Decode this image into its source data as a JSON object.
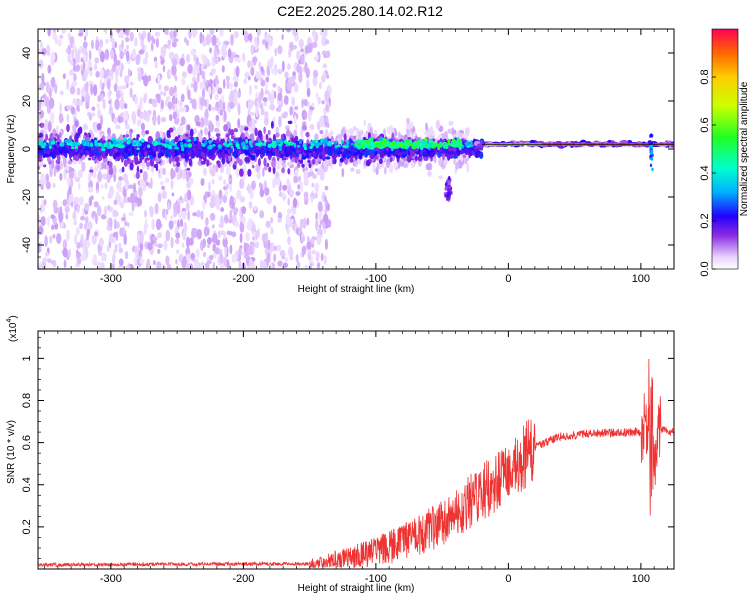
{
  "title": "C2E2.2025.280.14.02.R12",
  "chart_data": [
    {
      "type": "heatmap",
      "name": "spectrogram",
      "xlabel": "Height of straight line (km)",
      "ylabel": "Frequency (Hz)",
      "xlim": [
        -355,
        125
      ],
      "ylim": [
        -50,
        50
      ],
      "xticks": [
        -300,
        -200,
        -100,
        0,
        100
      ],
      "xtick_labels": [
        "-300",
        "-200",
        "-100",
        "0",
        "100"
      ],
      "yticks": [
        -40,
        -20,
        0,
        20,
        40
      ],
      "ytick_labels": [
        "-40",
        "-20",
        "0",
        "20",
        "40"
      ],
      "colorbar": {
        "label": "Normalized spectral amplitude",
        "range": [
          0,
          1
        ],
        "ticks": [
          0.0,
          0.2,
          0.4,
          0.6,
          0.8
        ],
        "tick_labels": [
          "0.0",
          "0.2",
          "0.4",
          "0.6",
          "0.8"
        ]
      },
      "center_line_hz": 2,
      "description_points": {
        "noise_region_km": [
          -355,
          -140
        ],
        "dense_band_km": [
          -355,
          -20
        ],
        "tone_region_km": [
          -20,
          125
        ],
        "spike_km": 108
      }
    },
    {
      "type": "line",
      "name": "snr",
      "xlabel": "Height of straight line (km)",
      "ylabel": "SNR (10 * v/v)",
      "scale_label": "(x10",
      "scale_exponent": "4",
      "scale_close": ")",
      "xlim": [
        -355,
        125
      ],
      "ylim": [
        0,
        1.13
      ],
      "xticks": [
        -300,
        -200,
        -100,
        0,
        100
      ],
      "xtick_labels": [
        "-300",
        "-200",
        "-100",
        "0",
        "100"
      ],
      "yticks": [
        0.2,
        0.4,
        0.6,
        0.8,
        1
      ],
      "ytick_labels": [
        "0.2",
        "0.4",
        "0.6",
        "0.8",
        "1"
      ],
      "color": "#ee3333",
      "trend": {
        "x": [
          -355,
          -150,
          -120,
          -80,
          -50,
          -20,
          0,
          20,
          40,
          60,
          100,
          105,
          110,
          115,
          125
        ],
        "y": [
          0.02,
          0.025,
          0.05,
          0.12,
          0.22,
          0.36,
          0.46,
          0.58,
          0.63,
          0.645,
          0.65,
          0.7,
          0.5,
          0.66,
          0.65
        ]
      }
    }
  ]
}
